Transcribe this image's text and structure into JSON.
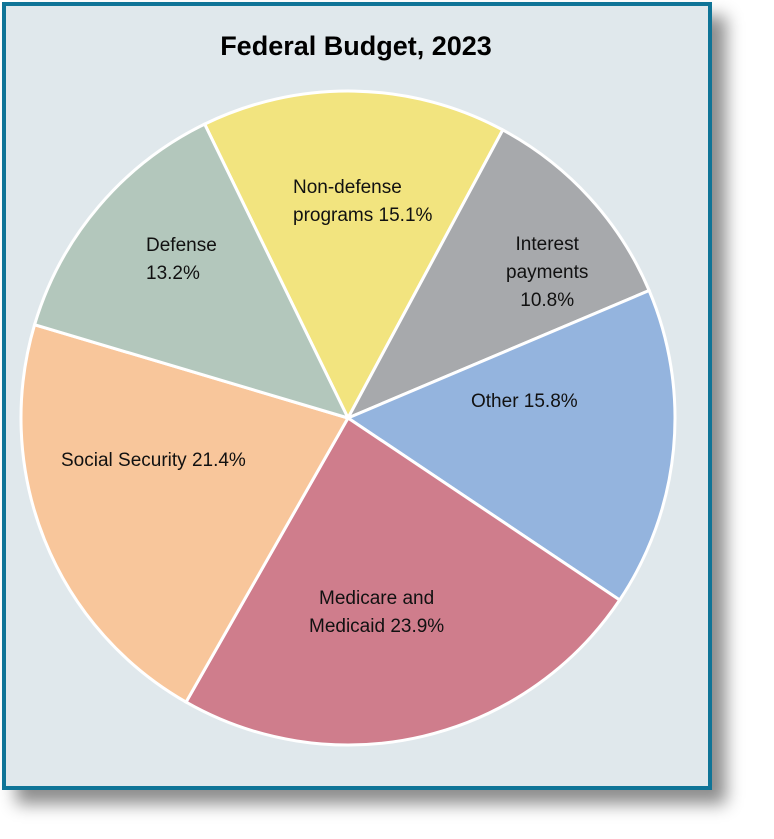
{
  "chart_data": {
    "type": "pie",
    "title": "Federal Budget, 2023",
    "slices": [
      {
        "label": "Non-defense programs",
        "value": 15.1,
        "text": "Non-defense\nprograms 15.1%",
        "color": "#f2e47f"
      },
      {
        "label": "Interest payments",
        "value": 10.8,
        "text": "Interest\npayments\n10.8%",
        "color": "#a7a9ac"
      },
      {
        "label": "Other",
        "value": 15.8,
        "text": "Other 15.8%",
        "color": "#94b4de"
      },
      {
        "label": "Medicare and Medicaid",
        "value": 23.9,
        "text": "Medicare and\nMedicaid 23.9%",
        "color": "#cf7d8c"
      },
      {
        "label": "Social Security",
        "value": 21.4,
        "text": "Social Security 21.4%",
        "color": "#f8c69b"
      },
      {
        "label": "Defense",
        "value": 13.2,
        "text": "Defense\n13.2%",
        "color": "#b3c7bc"
      }
    ],
    "legend": "none"
  }
}
